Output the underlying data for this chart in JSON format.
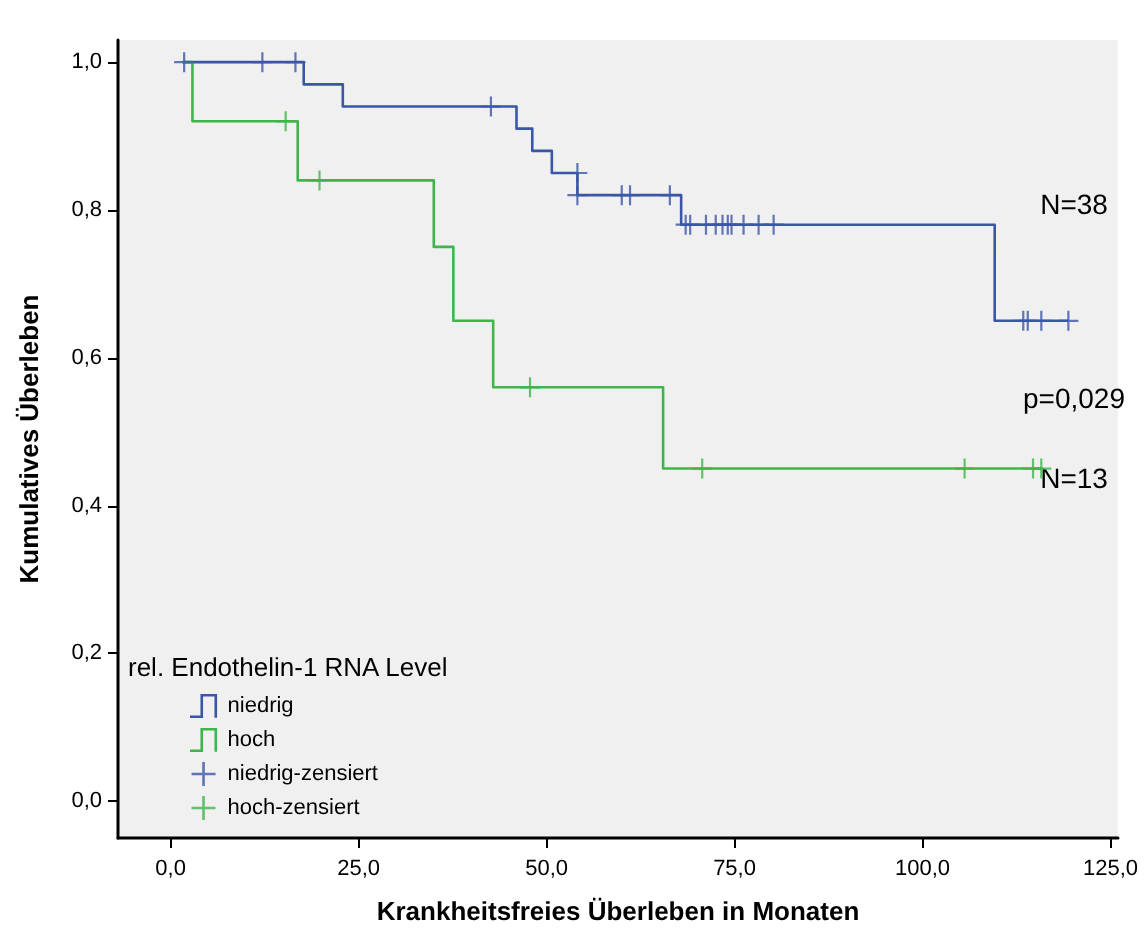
{
  "chart_data": {
    "type": "step",
    "xlabel": "Krankheitsfreies Überleben in Monaten",
    "ylabel": "Kumulatives Überleben",
    "legend_title": "rel. Endothelin-1 RNA Level",
    "xlim": [
      -7,
      126
    ],
    "ylim": [
      -0.05,
      1.03
    ],
    "xticks": [
      {
        "value": 0,
        "label": "0,0"
      },
      {
        "value": 25,
        "label": "25,0"
      },
      {
        "value": 50,
        "label": "50,0"
      },
      {
        "value": 75,
        "label": "75,0"
      },
      {
        "value": 100,
        "label": "100,0"
      },
      {
        "value": 125,
        "label": "125,0"
      }
    ],
    "yticks": [
      {
        "value": 0,
        "label": "0,0"
      },
      {
        "value": 0.2,
        "label": "0,2"
      },
      {
        "value": 0.4,
        "label": "0,4"
      },
      {
        "value": 0.6,
        "label": "0,6"
      },
      {
        "value": 0.8,
        "label": "0,8"
      },
      {
        "value": 1,
        "label": "1,0"
      }
    ],
    "series": [
      {
        "name": "niedrig",
        "color": "#3b56a6",
        "x": [
          1.6,
          17.7,
          22.9,
          46,
          48.1,
          50.7,
          54.1,
          67.9,
          109.6,
          119.4
        ],
        "values": [
          1,
          0.97,
          0.94,
          0.91,
          0.88,
          0.85,
          0.82,
          0.78,
          0.65,
          0.65
        ]
      },
      {
        "name": "hoch",
        "color": "#3fb54b",
        "x": [
          1.6,
          2.9,
          16.9,
          35,
          37.6,
          42.9,
          65.5,
          116
        ],
        "values": [
          1,
          0.92,
          0.84,
          0.75,
          0.65,
          0.56,
          0.45,
          0.45
        ]
      },
      {
        "name": "niedrig-zensiert",
        "type": "scatter",
        "marker": "cross",
        "color": "#3b56a6",
        "x": [
          1.8,
          12.2,
          16.6,
          42.6,
          54.1,
          54.1,
          60,
          61.1,
          66.4,
          68.5,
          69.1,
          71.2,
          72.5,
          73.4,
          74.1,
          74.6,
          76.2,
          78.2,
          80.2,
          113.4,
          114,
          115.8,
          119.4
        ],
        "values": [
          1,
          1,
          1,
          0.94,
          0.85,
          0.82,
          0.82,
          0.82,
          0.82,
          0.78,
          0.78,
          0.78,
          0.78,
          0.78,
          0.78,
          0.78,
          0.78,
          0.78,
          0.78,
          0.65,
          0.65,
          0.65,
          0.65
        ]
      },
      {
        "name": "hoch-zensiert",
        "type": "scatter",
        "marker": "cross",
        "color": "#3fb54b",
        "x": [
          15.3,
          19.8,
          47.8,
          70.7,
          105.6,
          114.7,
          115.8
        ],
        "values": [
          0.92,
          0.84,
          0.56,
          0.45,
          0.45,
          0.45,
          0.45
        ]
      }
    ],
    "annotations": [
      "N=38",
      "p=0,029",
      "N=13"
    ],
    "line_style": "solid",
    "grid": false,
    "legend": "bottom left"
  }
}
